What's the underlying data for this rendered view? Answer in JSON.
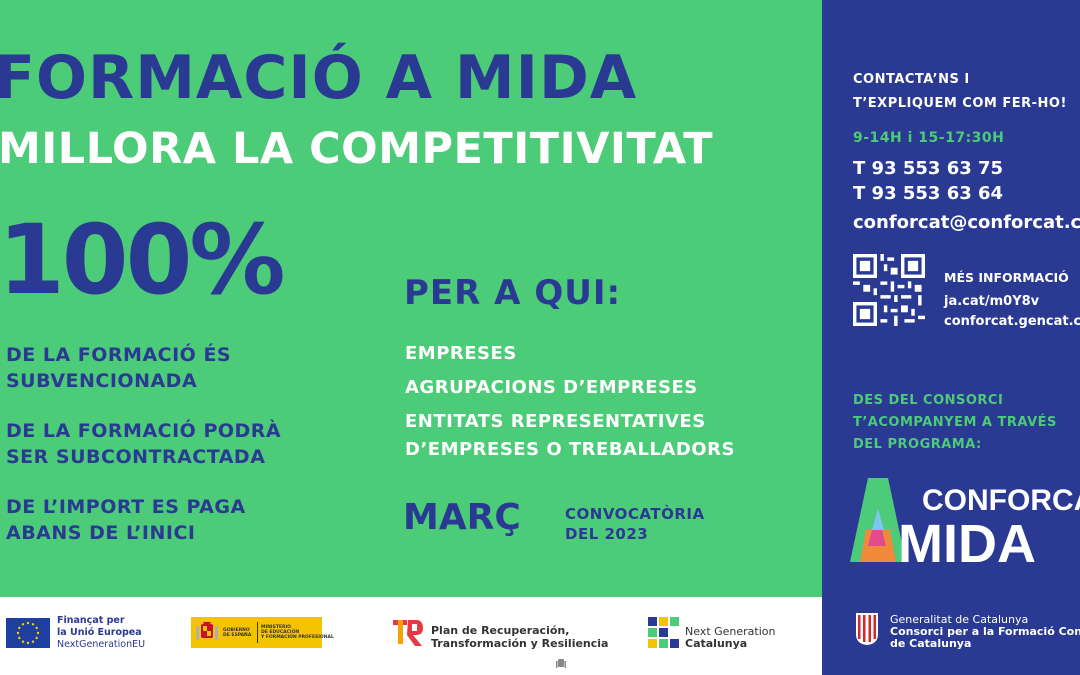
{
  "headline": {
    "title": "FORMACIÓ A MIDA",
    "subtitle": "MILLORA LA COMPETITIVITAT"
  },
  "percent": "100%",
  "items": [
    {
      "l1": "DE LA FORMACIÓ ÉS",
      "l2": "SUBVENCIONADA"
    },
    {
      "l1": "DE LA FORMACIÓ PODRÀ",
      "l2": "SER SUBCONTRACTADA"
    },
    {
      "l1": "DE L’IMPORT ES PAGA",
      "l2": "ABANS DE L’INICI"
    }
  ],
  "who": {
    "heading": "PER A QUI:",
    "list": [
      "EMPRESES",
      "AGRUPACIONS D’EMPRESES",
      "ENTITATS REPRESENTATIVES",
      "D’EMPRESES O TREBALLADORS"
    ]
  },
  "call": {
    "month": "MARÇ",
    "line1": "CONVOCATÒRIA",
    "line2": "DEL 2023"
  },
  "contact": {
    "line1": "CONTACTA’NS I",
    "line2": "T’EXPLIQUEM COM FER-HO!",
    "hours": "9-14H  i  15-17:30H",
    "phone1": "T 93 553 63 75",
    "phone2": "T 93 553 63 64",
    "email": "conforcat@conforcat.cat",
    "more_label": "MÉS INFORMACIÓ",
    "link1": "ja.cat/m0Y8v",
    "link2": "conforcat.gencat.cat"
  },
  "program": {
    "line1": "DES DEL CONSORCI",
    "line2": "T’ACOMPANYEM A TRAVÉS",
    "line3": "DEL PROGRAMA:",
    "logo_top": "CONFORCAT",
    "logo_bottom": "MIDA"
  },
  "generalitat": {
    "line1": "Generalitat de Catalunya",
    "line2": "Consorci per a la Formació Contínua",
    "line3": "de Catalunya"
  },
  "footer": {
    "eu_line1": "Finançat per",
    "eu_line2": "la Unió Europea",
    "eu_line3": "NextGenerationEU",
    "es_gov1": "GOBIERNO",
    "es_gov2": "DE ESPAÑA",
    "es_min1": "MINISTERIO",
    "es_min2": "DE EDUCACIÓN",
    "es_min3": "Y FORMACIÓN PROFESIONAL",
    "plan1": "Plan de Recuperación,",
    "plan2": "Transformación y Resiliencia",
    "ng1": "Next Generation",
    "ng2": "Catalunya"
  },
  "colors": {
    "green": "#4ccb78",
    "navy": "#2a3a93",
    "white": "#ffffff",
    "spain_yellow": "#f4c400"
  }
}
